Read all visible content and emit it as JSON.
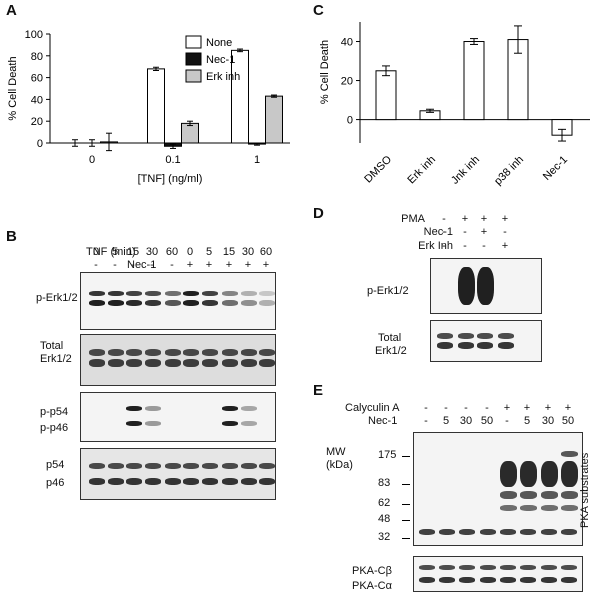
{
  "panel_labels": {
    "A": "A",
    "B": "B",
    "C": "C",
    "D": "D",
    "E": "E"
  },
  "chart_data": [
    {
      "type": "bar",
      "panel": "A",
      "ylabel": "% Cell Death",
      "xlabel": "[TNF] (ng/ml)",
      "categories": [
        "0",
        "0.1",
        "1"
      ],
      "ylim": [
        0,
        100
      ],
      "yticks": [
        "0",
        "20",
        "40",
        "60",
        "80",
        "100"
      ],
      "legend_position": "top-right",
      "series": [
        {
          "name": "None",
          "color": "#ffffff",
          "values": [
            0,
            68,
            85
          ],
          "errors": [
            3,
            1.5,
            1.2
          ]
        },
        {
          "name": "Nec-1",
          "color": "#111111",
          "values": [
            0,
            -3,
            -1
          ],
          "errors": [
            3,
            2,
            1
          ]
        },
        {
          "name": "Erk inh",
          "color": "#c8c8c8",
          "values": [
            1,
            18,
            43
          ],
          "errors": [
            8,
            2,
            1
          ]
        }
      ]
    },
    {
      "type": "bar",
      "panel": "C",
      "ylabel": "% Cell Death",
      "categories": [
        "DMSO",
        "Erk inh",
        "Jnk inh",
        "p38 inh",
        "Nec-1"
      ],
      "values": [
        25,
        4.5,
        40,
        41,
        -8
      ],
      "errors": [
        2.5,
        0.8,
        1.5,
        7,
        3
      ],
      "ylim": [
        -12,
        50
      ],
      "yticks": [
        "0",
        "20",
        "40"
      ],
      "grid": false
    }
  ],
  "panelB": {
    "header_label": "TNF (min)",
    "times": [
      "0",
      "5",
      "15",
      "30",
      "60",
      "0",
      "5",
      "15",
      "30",
      "60"
    ],
    "nec_label": "Nec-1",
    "nec": [
      "-",
      "-",
      "-",
      "-",
      "-",
      "+",
      "+",
      "+",
      "+",
      "+"
    ],
    "blot1": {
      "label": "p-Erk1/2"
    },
    "blot2": {
      "label_line1": "Total",
      "label_line2": "Erk1/2"
    },
    "blot3": {
      "label_top": "p-p54",
      "label_bottom": "p-p46"
    },
    "blot4": {
      "label_top": "p54",
      "label_bottom": "p46"
    }
  },
  "panelD": {
    "row_labels": [
      "PMA",
      "Nec-1",
      "Erk Inh"
    ],
    "rows": [
      [
        "-",
        "+",
        "+",
        "+"
      ],
      [
        "-",
        "-",
        "+",
        "-"
      ],
      [
        "-",
        "-",
        "-",
        "+"
      ]
    ],
    "blot1": {
      "label": "p-Erk1/2"
    },
    "blot2": {
      "label_line1": "Total",
      "label_line2": "Erk1/2"
    }
  },
  "panelE": {
    "calyculin_label": "Calyculin A",
    "calyculin": [
      "-",
      "-",
      "-",
      "-",
      "+",
      "+",
      "+",
      "+"
    ],
    "nec_label": "Nec-1",
    "nec": [
      "-",
      "5",
      "30",
      "50",
      "-",
      "5",
      "30",
      "50"
    ],
    "mw_label_line1": "MW",
    "mw_label_line2": "(kDa)",
    "mw_markers": [
      "175",
      "83",
      "62",
      "48",
      "32"
    ],
    "side_label": "PKA substrates",
    "blot2": {
      "label_top": "PKA-Cβ",
      "label_bottom": "PKA-Cα"
    }
  }
}
